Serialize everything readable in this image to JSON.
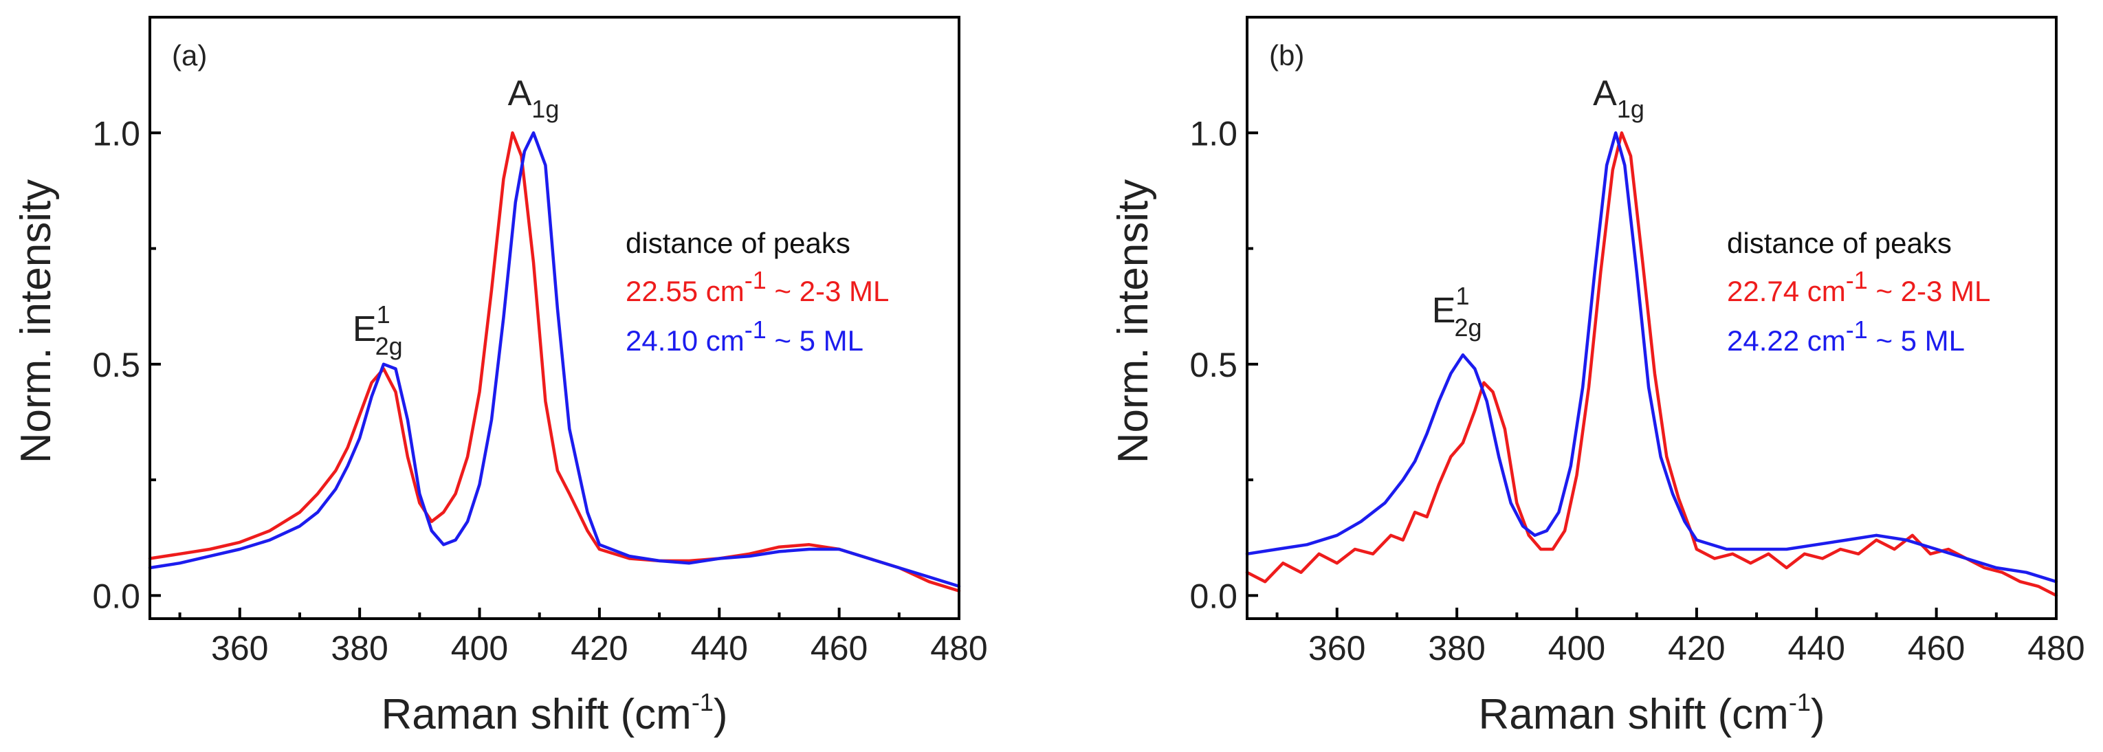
{
  "chart_data": [
    {
      "type": "line",
      "panel_label": "(a)",
      "xlabel": "Raman shift (cm",
      "xlabel_sup": "-1",
      "xlabel_end": ")",
      "ylabel": "Norm. intensity",
      "xlim": [
        345,
        480
      ],
      "ylim": [
        -0.05,
        1.25
      ],
      "xticks": [
        360,
        380,
        400,
        420,
        440,
        460,
        480
      ],
      "xtick_labels": [
        "360",
        "380",
        "400",
        "420",
        "440",
        "460",
        "480"
      ],
      "yticks": [
        0.0,
        0.5,
        1.0
      ],
      "ytick_labels": [
        "0.0",
        "0.5",
        "1.0"
      ],
      "peak_labels": [
        {
          "main": "E",
          "sup": "1",
          "sub": "2g",
          "x": 383,
          "y": 0.55
        },
        {
          "main": "A",
          "sub": "1g",
          "x": 409,
          "y": 1.06
        }
      ],
      "annotation": {
        "title": "distance of peaks",
        "lines": [
          {
            "pre": "22.55 cm",
            "sup": "-1",
            "post": " ~ 2-3 ML",
            "color": "#ee1c1c"
          },
          {
            "pre": "24.10 cm",
            "sup": "-1",
            "post": " ~ 5 ML",
            "color": "#1c1cee"
          }
        ]
      },
      "series": [
        {
          "name": "2-3 ML",
          "color": "#ee1c1c",
          "x": [
            345,
            350,
            355,
            360,
            365,
            370,
            373,
            376,
            378,
            380,
            382,
            384,
            386,
            388,
            390,
            392,
            394,
            396,
            398,
            400,
            402,
            404,
            405.5,
            407,
            409,
            411,
            413,
            415,
            418,
            420,
            425,
            430,
            435,
            440,
            445,
            450,
            455,
            460,
            465,
            470,
            475,
            480
          ],
          "y": [
            0.08,
            0.09,
            0.1,
            0.115,
            0.14,
            0.18,
            0.22,
            0.27,
            0.32,
            0.39,
            0.46,
            0.49,
            0.44,
            0.3,
            0.2,
            0.16,
            0.18,
            0.22,
            0.3,
            0.44,
            0.66,
            0.9,
            1.0,
            0.95,
            0.72,
            0.42,
            0.27,
            0.22,
            0.14,
            0.1,
            0.08,
            0.075,
            0.075,
            0.08,
            0.09,
            0.105,
            0.11,
            0.1,
            0.08,
            0.06,
            0.03,
            0.01
          ]
        },
        {
          "name": "5 ML",
          "color": "#1c1cee",
          "x": [
            345,
            350,
            355,
            360,
            365,
            370,
            373,
            376,
            378,
            380,
            382,
            384,
            386,
            388,
            390,
            392,
            394,
            396,
            398,
            400,
            402,
            404,
            406,
            407.5,
            409,
            411,
            413,
            415,
            418,
            420,
            425,
            430,
            435,
            440,
            445,
            450,
            455,
            460,
            465,
            470,
            475,
            480
          ],
          "y": [
            0.06,
            0.07,
            0.085,
            0.1,
            0.12,
            0.15,
            0.18,
            0.23,
            0.28,
            0.34,
            0.43,
            0.5,
            0.49,
            0.38,
            0.22,
            0.14,
            0.11,
            0.12,
            0.16,
            0.24,
            0.38,
            0.6,
            0.85,
            0.96,
            1.0,
            0.93,
            0.62,
            0.36,
            0.18,
            0.11,
            0.085,
            0.075,
            0.07,
            0.08,
            0.085,
            0.095,
            0.1,
            0.1,
            0.08,
            0.06,
            0.04,
            0.02
          ]
        }
      ]
    },
    {
      "type": "line",
      "panel_label": "(b)",
      "xlabel": "Raman shift (cm",
      "xlabel_sup": "-1",
      "xlabel_end": ")",
      "ylabel": "Norm. intensity",
      "xlim": [
        345,
        480
      ],
      "ylim": [
        -0.05,
        1.25
      ],
      "xticks": [
        360,
        380,
        400,
        420,
        440,
        460,
        480
      ],
      "xtick_labels": [
        "360",
        "380",
        "400",
        "420",
        "440",
        "460",
        "480"
      ],
      "yticks": [
        0.0,
        0.5,
        1.0
      ],
      "ytick_labels": [
        "0.0",
        "0.5",
        "1.0"
      ],
      "peak_labels": [
        {
          "main": "E",
          "sup": "1",
          "sub": "2g",
          "x": 380,
          "y": 0.59
        },
        {
          "main": "A",
          "sub": "1g",
          "x": 407,
          "y": 1.06
        }
      ],
      "annotation": {
        "title": "distance of peaks",
        "lines": [
          {
            "pre": "22.74 cm",
            "sup": "-1",
            "post": " ~ 2-3 ML",
            "color": "#ee1c1c"
          },
          {
            "pre": "24.22 cm",
            "sup": "-1",
            "post": " ~ 5 ML",
            "color": "#1c1cee"
          }
        ]
      },
      "series": [
        {
          "name": "2-3 ML",
          "color": "#ee1c1c",
          "x": [
            345,
            348,
            351,
            354,
            357,
            360,
            363,
            366,
            369,
            371,
            373,
            375,
            377,
            379,
            381,
            383,
            384.5,
            386,
            388,
            390,
            392,
            394,
            396,
            398,
            400,
            402,
            404,
            406,
            407.5,
            409,
            411,
            413,
            415,
            417,
            419,
            420,
            423,
            426,
            429,
            432,
            435,
            438,
            441,
            444,
            447,
            450,
            453,
            456,
            459,
            462,
            465,
            468,
            471,
            474,
            477,
            480
          ],
          "y": [
            0.05,
            0.03,
            0.07,
            0.05,
            0.09,
            0.07,
            0.1,
            0.09,
            0.13,
            0.12,
            0.18,
            0.17,
            0.24,
            0.3,
            0.33,
            0.4,
            0.46,
            0.44,
            0.36,
            0.2,
            0.13,
            0.1,
            0.1,
            0.14,
            0.26,
            0.45,
            0.7,
            0.92,
            1.0,
            0.95,
            0.72,
            0.48,
            0.3,
            0.21,
            0.14,
            0.1,
            0.08,
            0.09,
            0.07,
            0.09,
            0.06,
            0.09,
            0.08,
            0.1,
            0.09,
            0.12,
            0.1,
            0.13,
            0.09,
            0.1,
            0.08,
            0.06,
            0.05,
            0.03,
            0.02,
            0.0
          ]
        },
        {
          "name": "5 ML",
          "color": "#1c1cee",
          "x": [
            345,
            350,
            355,
            360,
            364,
            368,
            371,
            373,
            375,
            377,
            379,
            381,
            383,
            385,
            387,
            389,
            391,
            393,
            395,
            397,
            399,
            401,
            403,
            405,
            406.5,
            408,
            410,
            412,
            414,
            416,
            418,
            420,
            425,
            430,
            435,
            440,
            445,
            450,
            455,
            460,
            465,
            470,
            475,
            480
          ],
          "y": [
            0.09,
            0.1,
            0.11,
            0.13,
            0.16,
            0.2,
            0.25,
            0.29,
            0.35,
            0.42,
            0.48,
            0.52,
            0.49,
            0.42,
            0.3,
            0.2,
            0.15,
            0.13,
            0.14,
            0.18,
            0.28,
            0.45,
            0.7,
            0.93,
            1.0,
            0.93,
            0.7,
            0.45,
            0.3,
            0.22,
            0.16,
            0.12,
            0.1,
            0.1,
            0.1,
            0.11,
            0.12,
            0.13,
            0.12,
            0.1,
            0.08,
            0.06,
            0.05,
            0.03
          ]
        }
      ]
    }
  ]
}
